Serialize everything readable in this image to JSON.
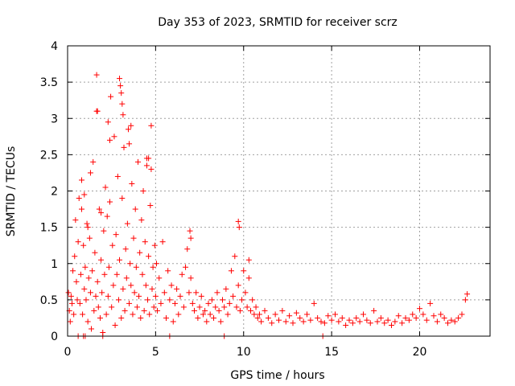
{
  "chart_data": {
    "type": "scatter",
    "title": "Day 353 of 2023, SRMTID for receiver scrz",
    "xlabel": "GPS time / hours",
    "ylabel": "SRMTID / TECUs",
    "xlim": [
      0,
      24
    ],
    "ylim": [
      0,
      4
    ],
    "x_ticks": [
      0,
      5,
      10,
      15,
      20
    ],
    "x_tick_labels": [
      "0",
      "5",
      "10",
      "15",
      "20"
    ],
    "y_ticks": [
      0,
      0.5,
      1,
      1.5,
      2,
      2.5,
      3,
      3.5,
      4
    ],
    "y_tick_labels": [
      "0",
      "0.5",
      "1",
      "1.5",
      "2",
      "2.5",
      "3",
      "3.5",
      "4"
    ],
    "grid": true,
    "marker": "+",
    "color": "#ff0000",
    "series": [
      {
        "name": "SRMTID",
        "x": [
          0.05,
          0.1,
          0.15,
          0.2,
          0.25,
          0.3,
          0.35,
          0.4,
          0.45,
          0.5,
          0.55,
          0.6,
          0.65,
          0.7,
          0.75,
          0.8,
          0.85,
          0.9,
          0.95,
          1.0,
          1.05,
          1.1,
          1.15,
          1.2,
          1.25,
          1.3,
          1.35,
          1.4,
          1.45,
          1.5,
          1.55,
          1.6,
          1.65,
          1.7,
          1.75,
          1.8,
          1.85,
          1.9,
          1.95,
          2.0,
          2.05,
          2.1,
          2.15,
          2.2,
          2.25,
          2.3,
          2.35,
          2.4,
          2.45,
          2.5,
          2.55,
          2.6,
          2.65,
          2.7,
          2.75,
          2.8,
          2.85,
          2.9,
          2.95,
          3.0,
          3.05,
          3.1,
          3.15,
          3.2,
          3.25,
          3.3,
          3.35,
          3.4,
          3.45,
          3.5,
          3.55,
          3.6,
          3.65,
          3.7,
          3.75,
          3.8,
          3.85,
          3.9,
          3.95,
          4.0,
          4.05,
          4.1,
          4.15,
          4.2,
          4.25,
          4.3,
          4.35,
          4.4,
          4.45,
          4.5,
          4.55,
          4.6,
          4.65,
          4.7,
          4.75,
          4.8,
          4.85,
          4.9,
          4.95,
          5.0,
          5.05,
          5.1,
          5.2,
          5.3,
          5.4,
          5.5,
          5.6,
          5.7,
          5.8,
          5.9,
          6.0,
          6.1,
          6.2,
          6.3,
          6.4,
          6.5,
          6.6,
          6.7,
          6.8,
          6.9,
          7.0,
          7.1,
          7.2,
          7.3,
          7.4,
          7.5,
          7.6,
          7.7,
          7.8,
          7.9,
          8.0,
          8.1,
          8.2,
          8.3,
          8.4,
          8.5,
          8.6,
          8.7,
          8.8,
          8.9,
          9.0,
          9.1,
          9.2,
          9.3,
          9.4,
          9.5,
          9.6,
          9.7,
          9.8,
          9.9,
          10.0,
          10.1,
          10.2,
          10.3,
          10.4,
          10.5,
          10.6,
          10.7,
          10.8,
          10.9,
          11.0,
          11.2,
          11.4,
          11.6,
          11.8,
          12.0,
          12.2,
          12.4,
          12.6,
          12.8,
          13.0,
          13.2,
          13.4,
          13.6,
          13.8,
          14.0,
          14.2,
          14.4,
          14.6,
          14.8,
          15.0,
          15.2,
          15.4,
          15.6,
          15.8,
          16.0,
          16.2,
          16.4,
          16.6,
          16.8,
          17.0,
          17.2,
          17.4,
          17.6,
          17.8,
          18.0,
          18.2,
          18.4,
          18.6,
          18.8,
          19.0,
          19.2,
          19.4,
          19.6,
          19.8,
          20.0,
          20.2,
          20.4,
          20.6,
          20.8,
          21.0,
          21.2,
          21.4,
          21.6,
          21.8,
          22.0,
          22.2,
          22.4,
          22.6,
          22.7,
          1.65,
          1.7,
          2.95,
          3.05,
          3.1,
          3.15,
          2.3,
          2.4,
          4.75,
          4.6,
          4.5,
          3.5,
          3.6,
          1.3,
          0.95,
          0.8,
          6.95,
          7.0,
          9.7,
          9.75,
          10.3,
          14.5,
          2.0,
          1.0,
          0.6,
          5.8,
          8.9,
          0.9,
          1.15,
          1.9
        ],
        "y": [
          0.6,
          0.35,
          0.2,
          0.55,
          0.45,
          0.9,
          0.3,
          1.1,
          1.6,
          0.75,
          0.5,
          1.3,
          1.9,
          0.45,
          0.85,
          2.15,
          0.3,
          1.25,
          0.65,
          0.95,
          0.5,
          1.55,
          0.2,
          0.8,
          1.35,
          0.6,
          0.1,
          0.9,
          2.4,
          0.35,
          1.15,
          0.55,
          3.1,
          0.75,
          0.4,
          1.75,
          0.25,
          1.05,
          0.6,
          0.05,
          1.45,
          0.85,
          2.05,
          0.3,
          1.65,
          0.55,
          0.95,
          1.85,
          3.3,
          0.4,
          1.25,
          0.7,
          2.75,
          0.15,
          1.4,
          0.85,
          2.2,
          0.5,
          1.05,
          3.45,
          0.25,
          1.9,
          0.65,
          2.6,
          0.35,
          1.2,
          0.8,
          1.55,
          2.85,
          0.45,
          1.0,
          0.7,
          2.1,
          0.3,
          1.35,
          0.6,
          1.75,
          0.95,
          0.4,
          2.4,
          0.55,
          1.15,
          0.25,
          1.6,
          0.85,
          2.0,
          0.35,
          1.3,
          0.7,
          2.45,
          0.5,
          1.1,
          0.3,
          1.8,
          2.3,
          0.65,
          0.95,
          0.4,
          1.25,
          0.55,
          1.0,
          0.35,
          0.8,
          0.45,
          1.3,
          0.6,
          0.25,
          0.9,
          0.5,
          0.7,
          0.2,
          0.45,
          0.65,
          0.3,
          0.55,
          0.85,
          0.4,
          0.95,
          1.2,
          0.6,
          0.8,
          0.45,
          0.35,
          0.6,
          0.25,
          0.4,
          0.55,
          0.3,
          0.35,
          0.2,
          0.45,
          0.3,
          0.5,
          0.25,
          0.4,
          0.6,
          0.35,
          0.2,
          0.5,
          0.4,
          0.65,
          0.3,
          0.45,
          0.9,
          0.55,
          1.1,
          0.4,
          0.7,
          0.35,
          0.5,
          0.9,
          0.6,
          0.4,
          0.8,
          0.35,
          0.5,
          0.3,
          0.4,
          0.25,
          0.3,
          0.2,
          0.35,
          0.25,
          0.18,
          0.3,
          0.22,
          0.35,
          0.2,
          0.28,
          0.18,
          0.32,
          0.25,
          0.2,
          0.3,
          0.22,
          0.45,
          0.25,
          0.2,
          0.18,
          0.28,
          0.22,
          0.3,
          0.2,
          0.25,
          0.15,
          0.22,
          0.18,
          0.25,
          0.2,
          0.3,
          0.22,
          0.18,
          0.35,
          0.2,
          0.25,
          0.18,
          0.22,
          0.15,
          0.2,
          0.28,
          0.18,
          0.25,
          0.22,
          0.3,
          0.25,
          0.38,
          0.3,
          0.22,
          0.45,
          0.28,
          0.2,
          0.3,
          0.25,
          0.18,
          0.22,
          0.2,
          0.25,
          0.3,
          0.5,
          0.58,
          3.6,
          3.1,
          3.55,
          3.35,
          3.2,
          3.05,
          2.95,
          2.7,
          2.9,
          2.45,
          2.35,
          2.65,
          2.9,
          2.25,
          1.95,
          1.75,
          1.45,
          1.35,
          1.58,
          1.5,
          1.05,
          0.0,
          0.0,
          0.0,
          0.0,
          0.0,
          0.0,
          0.0,
          1.5,
          1.7
        ]
      }
    ]
  }
}
